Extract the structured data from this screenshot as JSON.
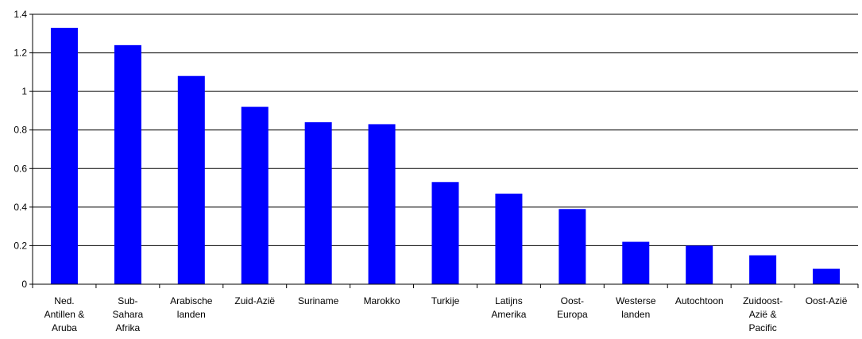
{
  "chart_data": {
    "type": "bar",
    "title": "",
    "xlabel": "",
    "ylabel": "",
    "ylim": [
      0,
      1.4
    ],
    "yticks": [
      "0",
      "0.2",
      "0.4",
      "0.6",
      "0.8",
      "1",
      "1.2",
      "1.4"
    ],
    "grid": true,
    "bar_color": "#0000ff",
    "categories": [
      [
        "Ned.",
        "Antillen &",
        "Aruba"
      ],
      [
        "Sub-",
        "Sahara",
        "Afrika"
      ],
      [
        "Arabische",
        "landen"
      ],
      [
        "Zuid-Azië"
      ],
      [
        "Suriname"
      ],
      [
        "Marokko"
      ],
      [
        "Turkije"
      ],
      [
        "Latijns",
        "Amerika"
      ],
      [
        "Oost-",
        "Europa"
      ],
      [
        "Westerse",
        "landen"
      ],
      [
        "Autochtoon"
      ],
      [
        "Zuidoost-",
        "Azië &",
        "Pacific"
      ],
      [
        "Oost-Azië"
      ]
    ],
    "values": [
      1.33,
      1.24,
      1.08,
      0.92,
      0.84,
      0.83,
      0.53,
      0.47,
      0.39,
      0.22,
      0.2,
      0.15,
      0.08
    ]
  }
}
